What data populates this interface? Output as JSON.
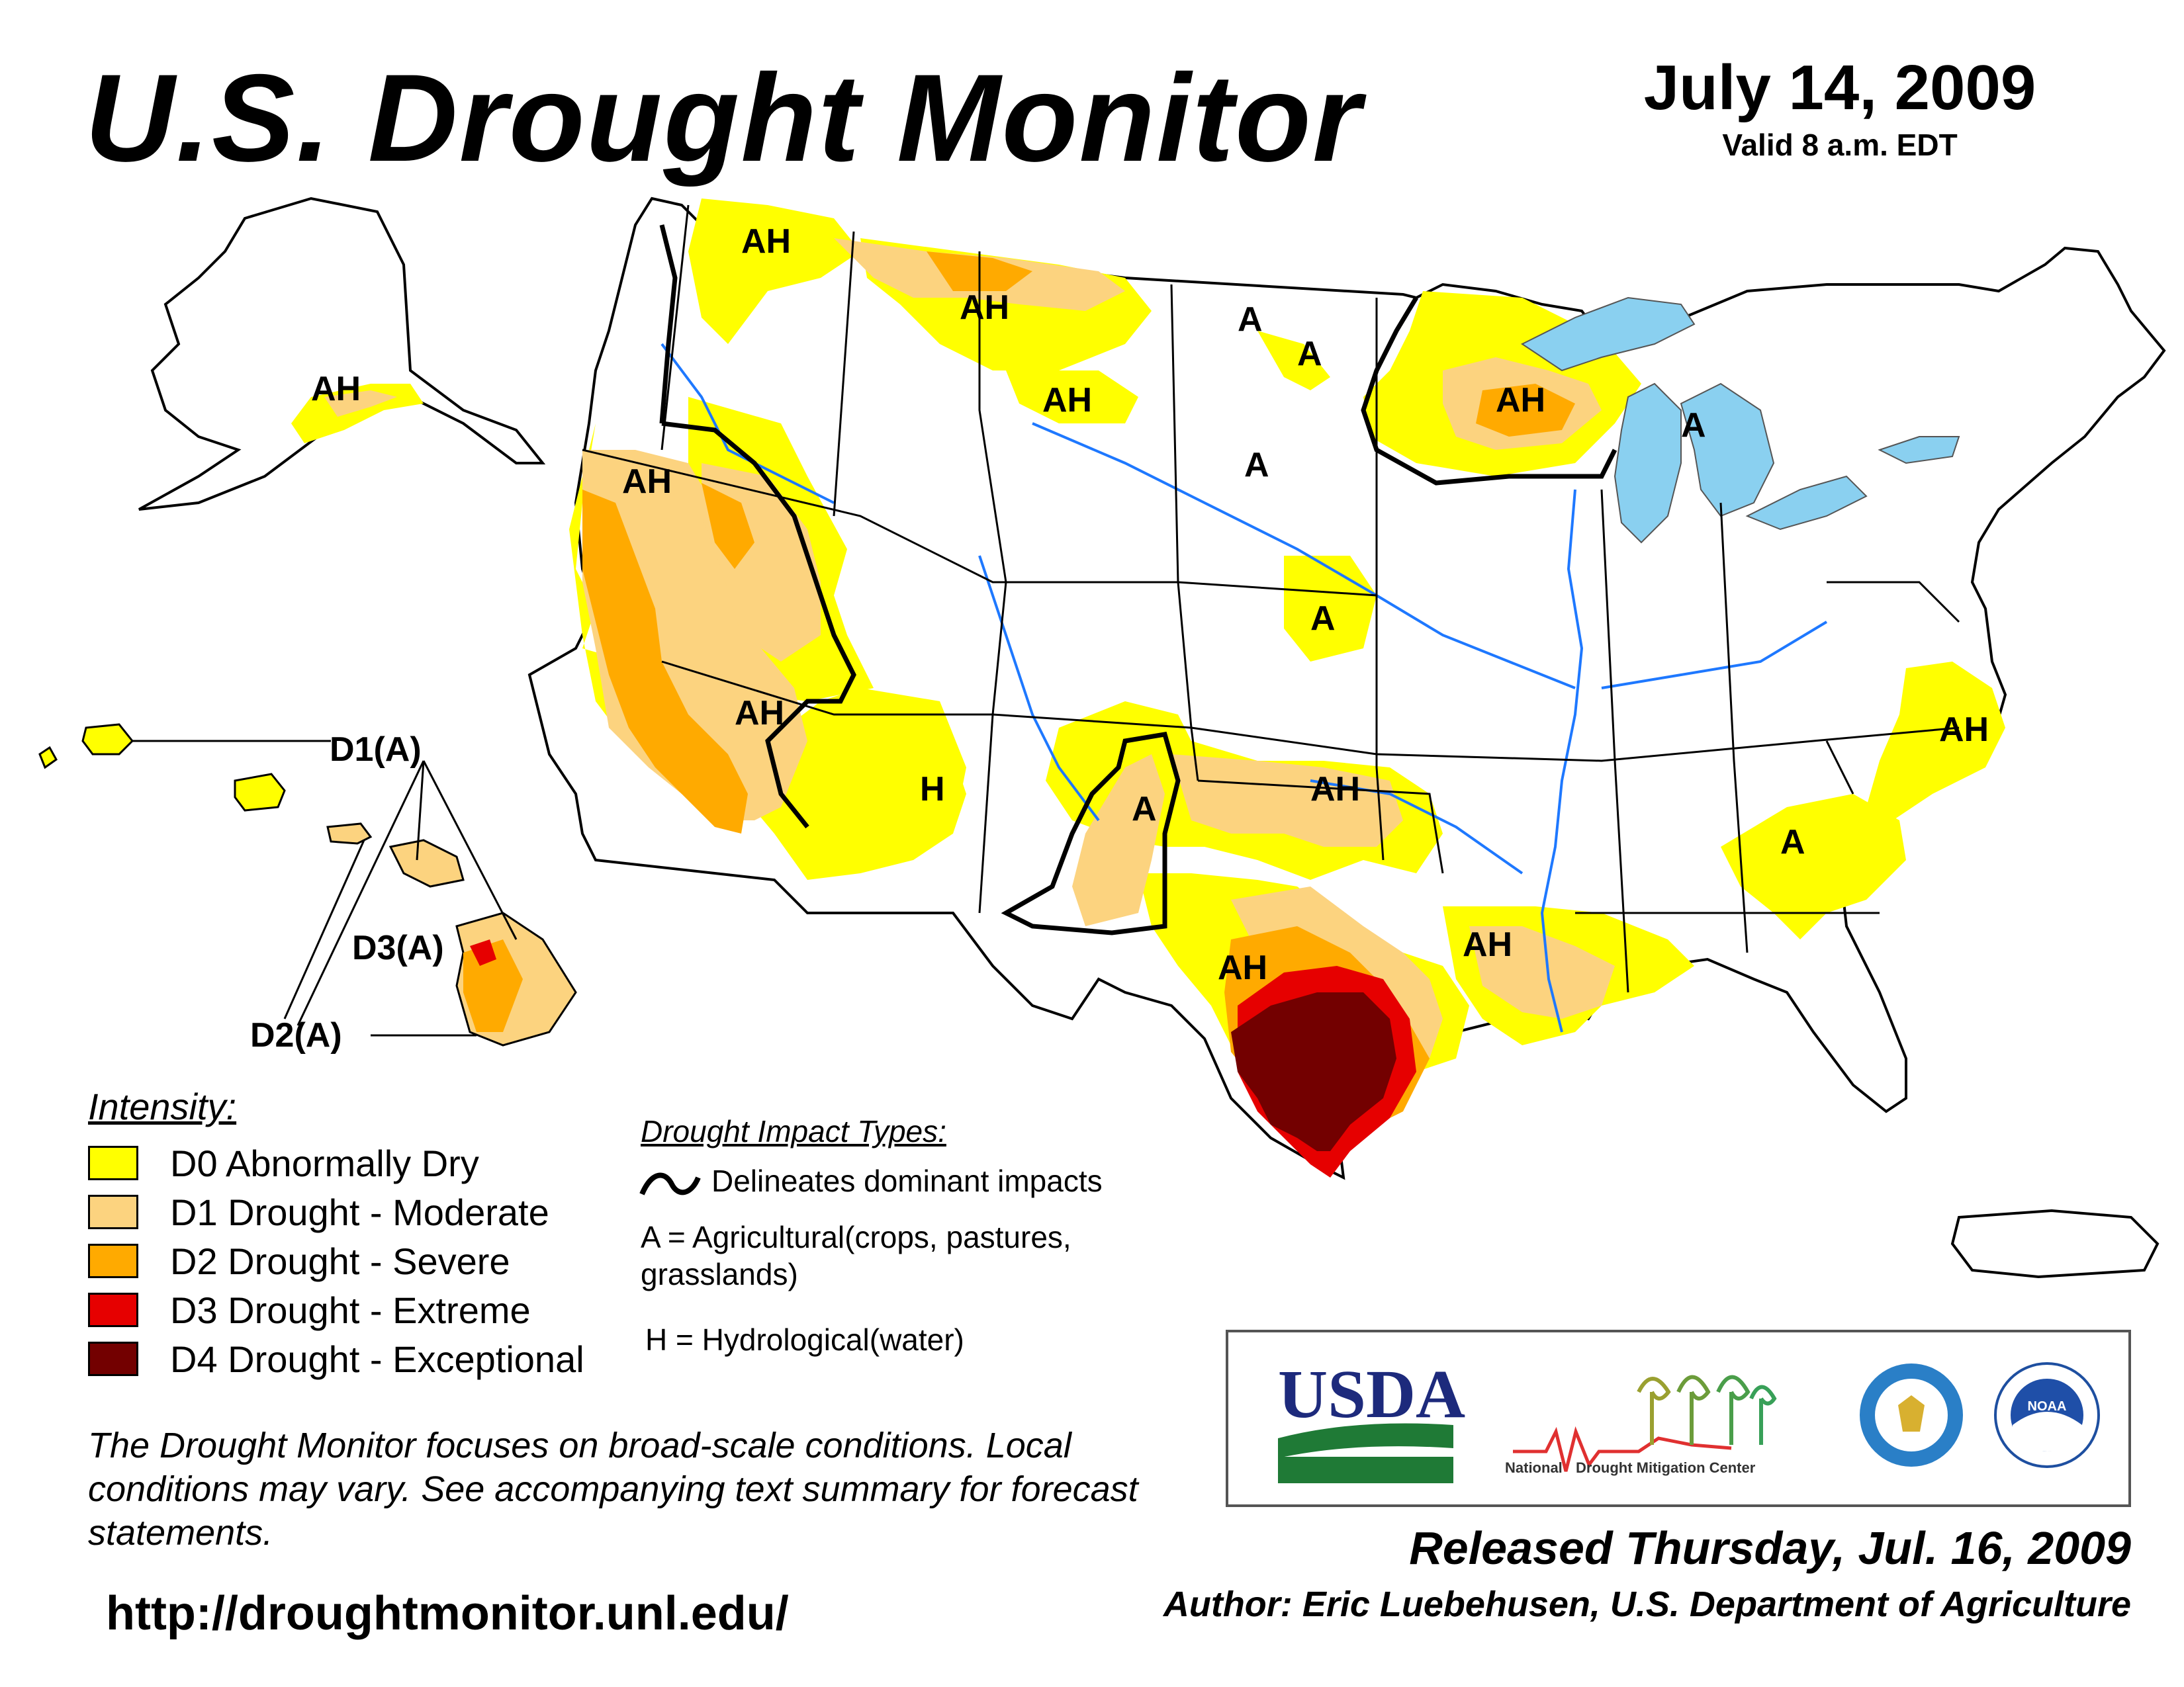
{
  "header": {
    "title": "U.S. Drought Monitor",
    "date": "July 14, 2009",
    "valid": "Valid 8 a.m. EDT"
  },
  "map": {
    "impact_labels": [
      "AH",
      "AH",
      "A",
      "A",
      "AH",
      "A",
      "AH",
      "A",
      "A",
      "AH",
      "AH",
      "H",
      "A",
      "AH",
      "A",
      "AH",
      "AH",
      "AH",
      "AH"
    ],
    "hawaii_labels": [
      "D1(A)",
      "D3(A)",
      "D2(A)"
    ]
  },
  "colors": {
    "d0": "#ffff00",
    "d1": "#fcd37f",
    "d2": "#ffaa00",
    "d3": "#e60000",
    "d4": "#730000",
    "water": "#8ad0f0",
    "river": "#1e78ff",
    "border": "#000000",
    "county": "#999999"
  },
  "legend": {
    "title": "Intensity:",
    "items": [
      {
        "label": "D0 Abnormally Dry",
        "color": "#ffff00"
      },
      {
        "label": "D1 Drought - Moderate",
        "color": "#fcd37f"
      },
      {
        "label": "D2 Drought - Severe",
        "color": "#ffaa00"
      },
      {
        "label": "D3 Drought - Extreme",
        "color": "#e60000"
      },
      {
        "label": "D4 Drought - Exceptional",
        "color": "#730000"
      }
    ]
  },
  "impacts": {
    "title": "Drought Impact Types:",
    "line_label": "Delineates dominant impacts",
    "agricultural": "A = Agricultural(crops, pastures, grasslands)",
    "hydrological": "H = Hydrological(water)"
  },
  "footer": {
    "disclaimer": "The Drought Monitor focuses on broad-scale conditions. Local conditions may vary. See accompanying text summary for forecast statements.",
    "url": "http://droughtmonitor.unl.edu/",
    "released": "Released Thursday, Jul. 16, 2009",
    "author": "Author: Eric Luebehusen, U.S. Department of Agriculture"
  },
  "logos": {
    "usda": "USDA",
    "ndmc_1": "National",
    "ndmc_2": "Drought Mitigation Center",
    "doc_icon": "department-of-commerce-seal",
    "noaa": "NOAA"
  }
}
